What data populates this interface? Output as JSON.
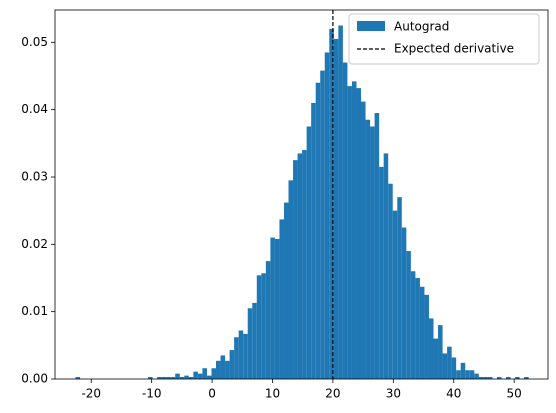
{
  "chart_data": {
    "type": "histogram",
    "bins": [
      -22.6,
      -21.85,
      -21.1,
      -20.35,
      -19.6,
      -18.85,
      -18.1,
      -17.35,
      -16.6,
      -15.85,
      -15.1,
      -14.35,
      -13.6,
      -12.85,
      -12.1,
      -11.35,
      -10.6,
      -9.85,
      -9.1,
      -8.35,
      -7.6,
      -6.85,
      -6.1,
      -5.35,
      -4.6,
      -3.85,
      -3.1,
      -2.35,
      -1.6,
      -0.85,
      -0.1,
      0.65,
      1.4,
      2.15,
      2.9,
      3.65,
      4.4,
      5.15,
      5.9,
      6.65,
      7.4,
      8.15,
      8.9,
      9.65,
      10.4,
      11.15,
      11.9,
      12.65,
      13.4,
      14.15,
      14.9,
      15.65,
      16.4,
      17.15,
      17.9,
      18.65,
      19.4,
      20.15,
      20.9,
      21.65,
      22.4,
      23.15,
      23.9,
      24.65,
      25.4,
      26.15,
      26.9,
      27.65,
      28.4,
      29.15,
      29.9,
      30.65,
      31.4,
      32.15,
      32.9,
      33.65,
      34.4,
      35.15,
      35.9,
      36.65,
      37.4,
      38.15,
      38.9,
      39.65,
      40.4,
      41.15,
      41.9,
      42.65,
      43.4,
      44.15,
      44.9,
      45.65,
      46.4,
      47.15,
      47.9,
      48.65,
      49.4,
      50.15,
      50.9,
      51.65,
      52.4
    ],
    "counts": [
      0.0003,
      0,
      0,
      0,
      0,
      0,
      0,
      0,
      0,
      0,
      0,
      0,
      0,
      0,
      0,
      0,
      0.0003,
      0,
      0.0003,
      0.0003,
      0.0003,
      0.0003,
      0.0008,
      0.0003,
      0.0005,
      0.0003,
      0.0011,
      0.0008,
      0.0016,
      0.0005,
      0.0016,
      0.0027,
      0.0035,
      0.0027,
      0.0043,
      0.0062,
      0.0072,
      0.0067,
      0.0105,
      0.0113,
      0.0154,
      0.0157,
      0.0175,
      0.021,
      0.0208,
      0.0237,
      0.0262,
      0.0295,
      0.0325,
      0.0335,
      0.034,
      0.0375,
      0.041,
      0.044,
      0.0458,
      0.0485,
      0.052,
      0.0505,
      0.0525,
      0.047,
      0.0435,
      0.0442,
      0.0432,
      0.0412,
      0.0385,
      0.0375,
      0.0395,
      0.0315,
      0.0335,
      0.029,
      0.025,
      0.027,
      0.0225,
      0.019,
      0.016,
      0.015,
      0.0137,
      0.0125,
      0.009,
      0.006,
      0.008,
      0.0038,
      0.0048,
      0.0032,
      0.0013,
      0.0024,
      0.0013,
      0.0013,
      0.0008,
      0.0003,
      0.0003,
      0.0003,
      0,
      0.0003,
      0,
      0.0003,
      0,
      0.0003,
      0,
      0.0003
    ],
    "name": "Autograd",
    "color": "#1f77b4",
    "vline": {
      "x": 20,
      "name": "Expected derivative",
      "color": "#000000"
    },
    "xlim": [
      -26.0,
      55.6
    ],
    "ylim": [
      0,
      0.0548
    ],
    "xticks": [
      -20,
      -10,
      0,
      10,
      20,
      30,
      40,
      50
    ],
    "yticks": [
      {
        "value": 0,
        "label": "0.00"
      },
      {
        "value": 0.01,
        "label": "0.01"
      },
      {
        "value": 0.02,
        "label": "0.02"
      },
      {
        "value": 0.03,
        "label": "0.03"
      },
      {
        "value": 0.04,
        "label": "0.04"
      },
      {
        "value": 0.05,
        "label": "0.05"
      }
    ],
    "legend": "upper right"
  }
}
